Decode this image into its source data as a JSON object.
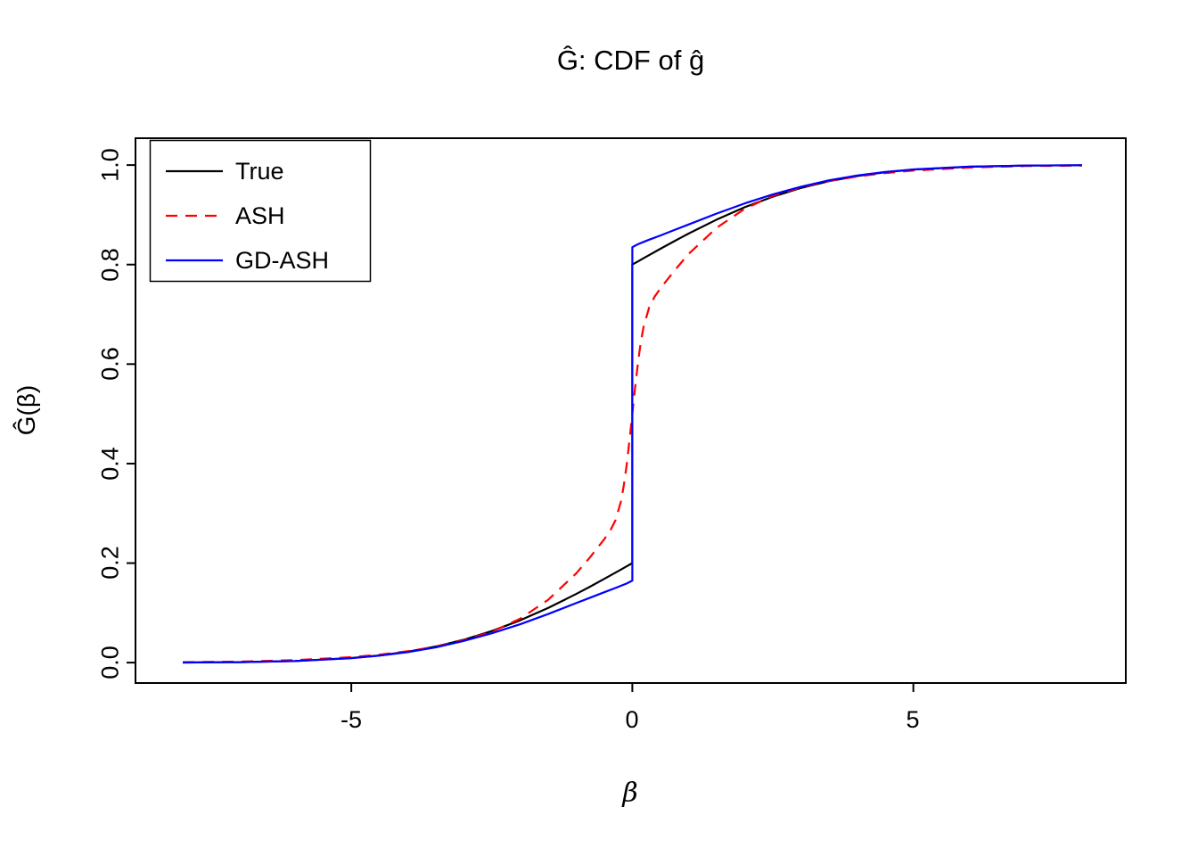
{
  "figure": {
    "title": "Ĝ: CDF of ĝ",
    "x_axis_label": "β",
    "y_axis_label": "Ĝ(β)"
  },
  "legend": {
    "position": "top-left",
    "items": [
      {
        "label": "True",
        "color": "#000000",
        "dash": "solid"
      },
      {
        "label": "ASH",
        "color": "#FF0000",
        "dash": "dashed"
      },
      {
        "label": "GD-ASH",
        "color": "#0000FF",
        "dash": "solid"
      }
    ]
  },
  "chart_data": {
    "type": "line",
    "title": "Ĝ: CDF of ĝ",
    "xlabel": "β",
    "ylabel": "Ĝ(β)",
    "grid": false,
    "legend_position": "top-left",
    "xlim": [
      -8.84,
      8.78
    ],
    "ylim": [
      -0.041,
      1.054
    ],
    "x_ticks": {
      "values": [
        -5,
        0,
        5
      ],
      "labels": [
        "-5",
        "0",
        "5"
      ]
    },
    "y_ticks": {
      "values": [
        0.0,
        0.2,
        0.4,
        0.6,
        0.8,
        1.0
      ],
      "labels": [
        "0.0",
        "0.2",
        "0.4",
        "0.6",
        "0.8",
        "1.0"
      ]
    },
    "series": [
      {
        "name": "True",
        "color": "#000000",
        "style": "solid",
        "description": "True mixture CDF: point mass 0.6 at 0 plus continuous component; jump from 0.2 to 0.8 at beta=0",
        "points": [
          [
            -8,
            0.0003
          ],
          [
            -7,
            0.001
          ],
          [
            -6,
            0.0033
          ],
          [
            -5,
            0.0091
          ],
          [
            -4.5,
            0.0144
          ],
          [
            -4,
            0.0219
          ],
          [
            -3.5,
            0.0323
          ],
          [
            -3,
            0.046
          ],
          [
            -2.5,
            0.0635
          ],
          [
            -2,
            0.0848
          ],
          [
            -1.5,
            0.1097
          ],
          [
            -1,
            0.1378
          ],
          [
            -0.75,
            0.1528
          ],
          [
            -0.5,
            0.1683
          ],
          [
            -0.3,
            0.1809
          ],
          [
            -0.2,
            0.1872
          ],
          [
            -0.1,
            0.1936
          ],
          [
            0,
            0.2
          ],
          [
            0,
            0.8
          ],
          [
            0.1,
            0.8064
          ],
          [
            0.2,
            0.8128
          ],
          [
            0.3,
            0.8191
          ],
          [
            0.5,
            0.8317
          ],
          [
            0.75,
            0.8472
          ],
          [
            1,
            0.8622
          ],
          [
            1.5,
            0.8903
          ],
          [
            2,
            0.9152
          ],
          [
            2.5,
            0.9365
          ],
          [
            3,
            0.954
          ],
          [
            3.5,
            0.9677
          ],
          [
            4,
            0.9781
          ],
          [
            4.5,
            0.9856
          ],
          [
            5,
            0.9909
          ],
          [
            6,
            0.9967
          ],
          [
            7,
            0.999
          ],
          [
            8,
            0.9997
          ]
        ]
      },
      {
        "name": "ASH",
        "color": "#FF0000",
        "style": "dashed",
        "description": "ASH estimate: smooth sigmoid CDF, no jump, passes through 0.5 at beta=0",
        "points": [
          [
            -8,
            0.001
          ],
          [
            -7,
            0.002
          ],
          [
            -6,
            0.005
          ],
          [
            -5,
            0.011
          ],
          [
            -4.5,
            0.016
          ],
          [
            -4,
            0.023
          ],
          [
            -3.5,
            0.032
          ],
          [
            -3,
            0.045
          ],
          [
            -2.5,
            0.062
          ],
          [
            -2,
            0.088
          ],
          [
            -1.5,
            0.126
          ],
          [
            -1,
            0.179
          ],
          [
            -0.75,
            0.212
          ],
          [
            -0.5,
            0.248
          ],
          [
            -0.4,
            0.264
          ],
          [
            -0.3,
            0.286
          ],
          [
            -0.2,
            0.325
          ],
          [
            -0.15,
            0.357
          ],
          [
            -0.1,
            0.398
          ],
          [
            -0.05,
            0.447
          ],
          [
            0,
            0.5
          ],
          [
            0.05,
            0.553
          ],
          [
            0.1,
            0.602
          ],
          [
            0.15,
            0.643
          ],
          [
            0.2,
            0.675
          ],
          [
            0.3,
            0.714
          ],
          [
            0.4,
            0.736
          ],
          [
            0.5,
            0.752
          ],
          [
            0.75,
            0.788
          ],
          [
            1,
            0.821
          ],
          [
            1.5,
            0.874
          ],
          [
            2,
            0.912
          ],
          [
            2.5,
            0.938
          ],
          [
            3,
            0.955
          ],
          [
            3.5,
            0.968
          ],
          [
            4,
            0.977
          ],
          [
            4.5,
            0.984
          ],
          [
            5,
            0.989
          ],
          [
            6,
            0.995
          ],
          [
            7,
            0.998
          ],
          [
            8,
            0.999
          ]
        ]
      },
      {
        "name": "GD-ASH",
        "color": "#0000FF",
        "style": "solid",
        "description": "GD-ASH estimate: CDF with jump from 0.165 to 0.835 at beta=0",
        "points": [
          [
            -8,
            0.0003
          ],
          [
            -7,
            0.001
          ],
          [
            -6,
            0.003
          ],
          [
            -5,
            0.0088
          ],
          [
            -4.5,
            0.014
          ],
          [
            -4,
            0.021
          ],
          [
            -3.5,
            0.0305
          ],
          [
            -3,
            0.0435
          ],
          [
            -2.5,
            0.059
          ],
          [
            -2,
            0.077
          ],
          [
            -1.5,
            0.0975
          ],
          [
            -1,
            0.1195
          ],
          [
            -0.75,
            0.1305
          ],
          [
            -0.5,
            0.1415
          ],
          [
            -0.3,
            0.15
          ],
          [
            -0.2,
            0.1545
          ],
          [
            -0.1,
            0.159
          ],
          [
            0,
            0.165
          ],
          [
            0,
            0.835
          ],
          [
            0.1,
            0.841
          ],
          [
            0.2,
            0.8455
          ],
          [
            0.3,
            0.85
          ],
          [
            0.5,
            0.8585
          ],
          [
            0.75,
            0.8695
          ],
          [
            1,
            0.8805
          ],
          [
            1.5,
            0.9025
          ],
          [
            2,
            0.923
          ],
          [
            2.5,
            0.941
          ],
          [
            3,
            0.9565
          ],
          [
            3.5,
            0.9695
          ],
          [
            4,
            0.979
          ],
          [
            4.5,
            0.986
          ],
          [
            5,
            0.9912
          ],
          [
            6,
            0.997
          ],
          [
            7,
            0.999
          ],
          [
            8,
            0.9997
          ]
        ]
      }
    ]
  }
}
